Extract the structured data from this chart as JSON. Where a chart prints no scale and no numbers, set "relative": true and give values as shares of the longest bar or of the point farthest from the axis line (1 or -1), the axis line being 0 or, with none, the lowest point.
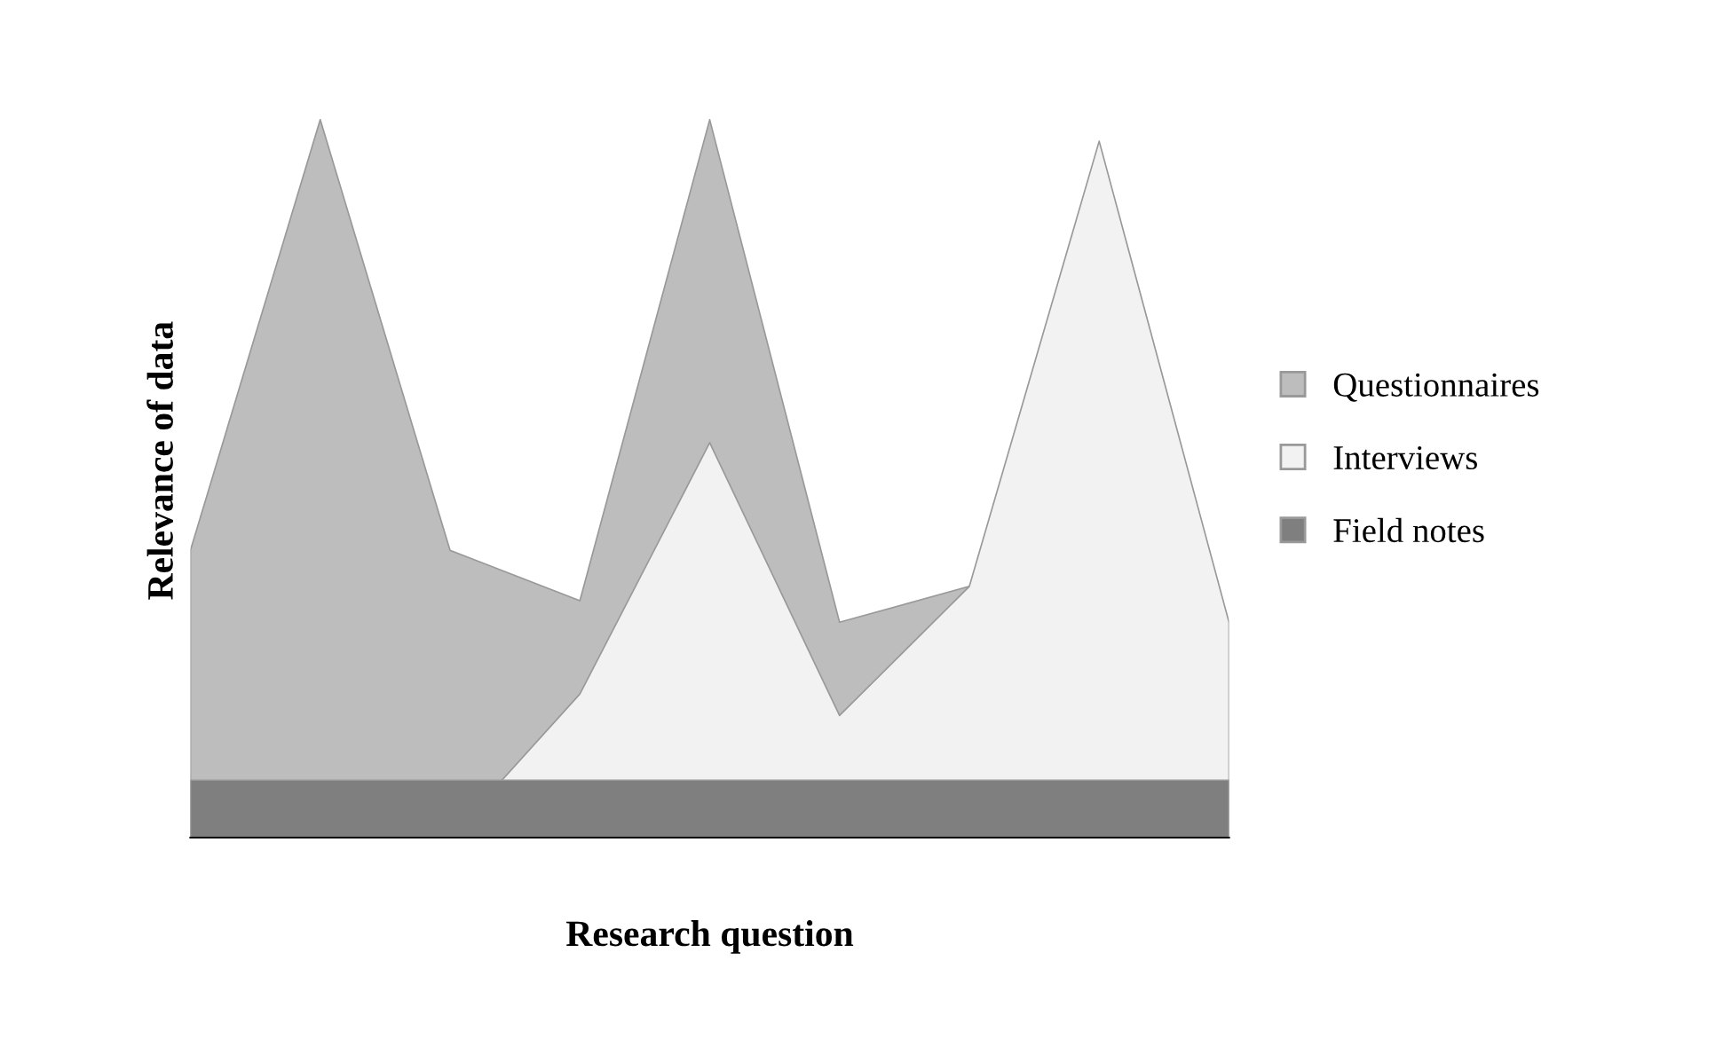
{
  "chart_data": {
    "type": "area",
    "relative": true,
    "xlabel": "Research question",
    "ylabel": "Relevance of data",
    "categories": [
      null,
      null,
      null,
      null,
      null,
      null,
      null,
      null,
      null
    ],
    "legend": "right",
    "grid": false,
    "series": [
      {
        "name": "Questionnaires",
        "color": "#bdbdbd",
        "values": [
          0.4,
          1.0,
          0.4,
          0.33,
          1.0,
          0.3,
          0.35,
          null,
          null
        ]
      },
      {
        "name": "Interviews",
        "color": "#f2f2f2",
        "values": [
          null,
          null,
          0,
          0.2,
          0.55,
          0.17,
          0.35,
          0.97,
          0.3
        ]
      },
      {
        "name": "Field notes",
        "color": "#7f7f7f",
        "values": [
          0.08,
          0.08,
          0.08,
          0.08,
          0.08,
          0.08,
          0.08,
          0.08,
          0.08
        ]
      }
    ]
  }
}
